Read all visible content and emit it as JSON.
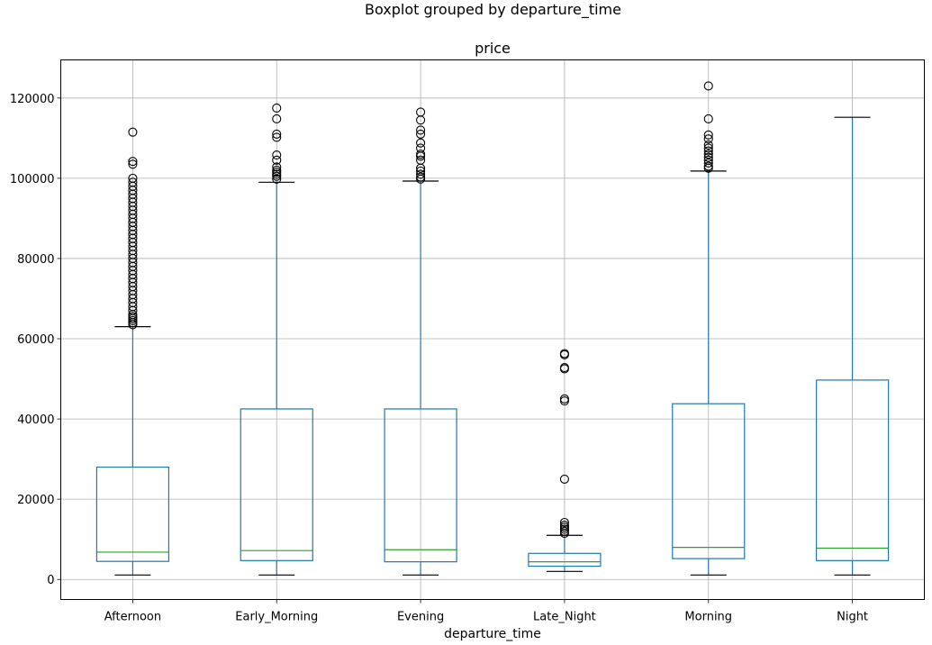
{
  "figure": {
    "suptitle": "Boxplot grouped by departure_time"
  },
  "chart_data": {
    "type": "boxplot",
    "title": "price",
    "xlabel": "departure_time",
    "ylabel": "",
    "ylim": [
      -5000,
      129500
    ],
    "yticks": [
      0,
      20000,
      40000,
      60000,
      80000,
      100000,
      120000
    ],
    "grid": true,
    "colors": {
      "box": "#1f77b4",
      "median": "#2ca02c",
      "flier": "#000000",
      "grid": "#b0b0b0"
    },
    "categories": [
      "Afternoon",
      "Early_Morning",
      "Evening",
      "Late_Night",
      "Morning",
      "Night"
    ],
    "boxes": [
      {
        "category": "Afternoon",
        "whisker_low": 1100,
        "q1": 4500,
        "median": 6800,
        "q3": 28000,
        "whisker_high": 63000,
        "outliers": [
          63500,
          64000,
          64500,
          65000,
          65500,
          66000,
          67000,
          68000,
          69000,
          70000,
          71000,
          72000,
          73000,
          74000,
          75000,
          76000,
          77000,
          78000,
          79000,
          80000,
          81000,
          82000,
          83000,
          84000,
          85000,
          86000,
          87000,
          88000,
          89000,
          90000,
          91000,
          92000,
          93000,
          94000,
          95000,
          96000,
          97000,
          98000,
          99000,
          100000,
          103500,
          104200,
          111500
        ]
      },
      {
        "category": "Early_Morning",
        "whisker_low": 1100,
        "q1": 4700,
        "median": 7200,
        "q3": 42500,
        "whisker_high": 99000,
        "outliers": [
          99800,
          100500,
          101000,
          101500,
          102000,
          102800,
          104500,
          105800,
          110200,
          111000,
          114800,
          117500
        ]
      },
      {
        "category": "Evening",
        "whisker_low": 1100,
        "q1": 4400,
        "median": 7400,
        "q3": 42500,
        "whisker_high": 99300,
        "outliers": [
          99800,
          100300,
          101000,
          101800,
          102500,
          104500,
          105500,
          106000,
          107500,
          108800,
          111000,
          112000,
          114500,
          116500
        ]
      },
      {
        "category": "Late_Night",
        "whisker_low": 2000,
        "q1": 3300,
        "median": 4400,
        "q3": 6500,
        "whisker_high": 11000,
        "outliers": [
          11500,
          12000,
          12500,
          13000,
          13500,
          14200,
          25000,
          44500,
          45000,
          52500,
          52800,
          56000,
          56300
        ]
      },
      {
        "category": "Morning",
        "whisker_low": 1100,
        "q1": 5200,
        "median": 8000,
        "q3": 43800,
        "whisker_high": 101800,
        "outliers": [
          102500,
          103000,
          103800,
          104500,
          105200,
          106000,
          106800,
          107500,
          108300,
          109800,
          110800,
          114800,
          123000
        ]
      },
      {
        "category": "Night",
        "whisker_low": 1100,
        "q1": 4700,
        "median": 7800,
        "q3": 49700,
        "whisker_high": 115200,
        "outliers": []
      }
    ]
  }
}
